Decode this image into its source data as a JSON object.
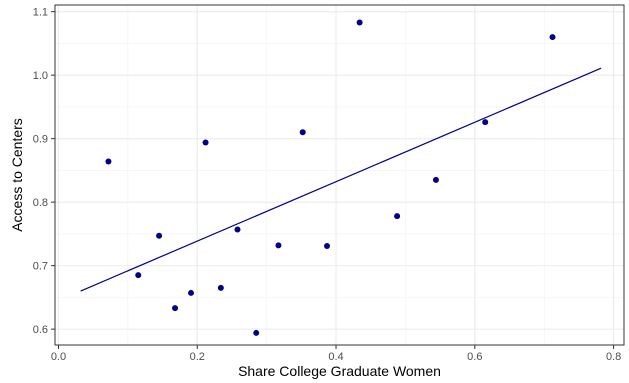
{
  "chart_data": {
    "type": "scatter",
    "title": "",
    "xlabel": "Share College Graduate Women",
    "ylabel": "Access to Centers",
    "xlim": [
      -0.005,
      0.815
    ],
    "ylim": [
      0.575,
      1.1105
    ],
    "x_ticks": [
      0.0,
      0.2,
      0.4,
      0.6,
      0.8
    ],
    "x_tick_labels": [
      "0.0",
      "0.2",
      "0.4",
      "0.6",
      "0.8"
    ],
    "y_ticks": [
      0.6,
      0.7,
      0.8,
      0.9,
      1.0,
      1.1
    ],
    "y_tick_labels": [
      "0.6",
      "0.7",
      "0.8",
      "0.9",
      "1.0",
      "1.1"
    ],
    "grid": true,
    "legend": "none",
    "series": [
      {
        "kind": "points",
        "color": "#00008b",
        "points": [
          {
            "x": 0.072,
            "y": 0.864
          },
          {
            "x": 0.115,
            "y": 0.685
          },
          {
            "x": 0.145,
            "y": 0.747
          },
          {
            "x": 0.168,
            "y": 0.633
          },
          {
            "x": 0.191,
            "y": 0.657
          },
          {
            "x": 0.212,
            "y": 0.894
          },
          {
            "x": 0.234,
            "y": 0.665
          },
          {
            "x": 0.258,
            "y": 0.757
          },
          {
            "x": 0.285,
            "y": 0.594
          },
          {
            "x": 0.317,
            "y": 0.732
          },
          {
            "x": 0.352,
            "y": 0.91
          },
          {
            "x": 0.387,
            "y": 0.731
          },
          {
            "x": 0.434,
            "y": 1.083
          },
          {
            "x": 0.488,
            "y": 0.778
          },
          {
            "x": 0.544,
            "y": 0.835
          },
          {
            "x": 0.615,
            "y": 0.926
          },
          {
            "x": 0.712,
            "y": 1.06
          }
        ]
      },
      {
        "kind": "fit-line",
        "color": "#00008b",
        "x": [
          0.032,
          0.782
        ],
        "y": [
          0.66,
          1.011
        ]
      }
    ]
  }
}
